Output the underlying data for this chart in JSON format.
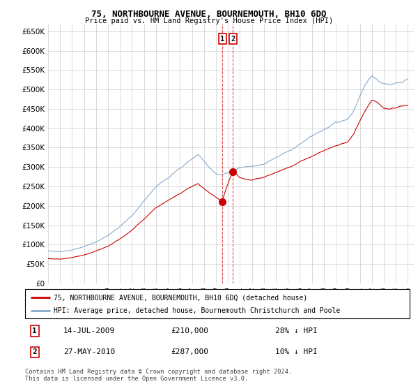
{
  "title": "75, NORTHBOURNE AVENUE, BOURNEMOUTH, BH10 6DQ",
  "subtitle": "Price paid vs. HM Land Registry's House Price Index (HPI)",
  "legend_line1": "75, NORTHBOURNE AVENUE, BOURNEMOUTH, BH10 6DQ (detached house)",
  "legend_line2": "HPI: Average price, detached house, Bournemouth Christchurch and Poole",
  "transaction1_date": "14-JUL-2009",
  "transaction1_price": 210000,
  "transaction1_note": "28% ↓ HPI",
  "transaction1_x": 2009.54,
  "transaction1_y": 210000,
  "transaction2_date": "27-MAY-2010",
  "transaction2_price": 287000,
  "transaction2_note": "10% ↓ HPI",
  "transaction2_x": 2010.41,
  "transaction2_y": 287000,
  "footer": "Contains HM Land Registry data © Crown copyright and database right 2024.\nThis data is licensed under the Open Government Licence v3.0.",
  "ylim": [
    0,
    670000
  ],
  "yticks": [
    0,
    50000,
    100000,
    150000,
    200000,
    250000,
    300000,
    350000,
    400000,
    450000,
    500000,
    550000,
    600000,
    650000
  ],
  "red_color": "#cc0000",
  "blue_color": "#88aacc",
  "background_color": "#ffffff",
  "grid_color": "#cccccc",
  "xmin": 1995.0,
  "xmax": 2025.5
}
